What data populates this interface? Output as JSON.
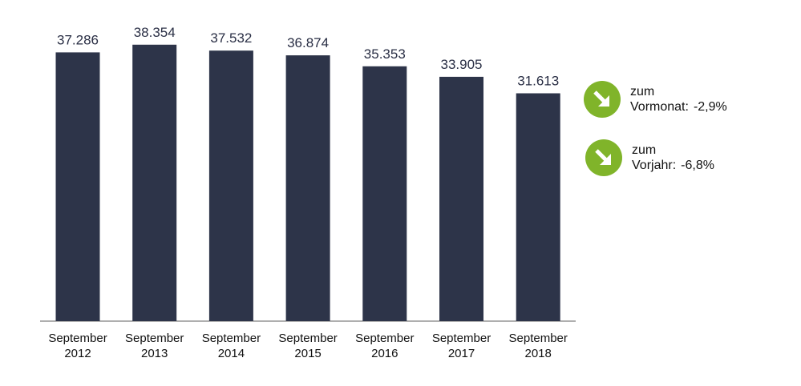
{
  "chart_data": {
    "type": "bar",
    "categories": [
      [
        "September",
        "2012"
      ],
      [
        "September",
        "2013"
      ],
      [
        "September",
        "2014"
      ],
      [
        "September",
        "2015"
      ],
      [
        "September",
        "2016"
      ],
      [
        "September",
        "2017"
      ],
      [
        "September",
        "2018"
      ]
    ],
    "values": [
      37286,
      38354,
      37532,
      36874,
      35353,
      33905,
      31613
    ],
    "value_labels": [
      "37.286",
      "38.354",
      "37.532",
      "36.874",
      "35.353",
      "33.905",
      "31.613"
    ],
    "ylim": [
      0,
      40000
    ],
    "grid": false,
    "bar_color": "#2d3449"
  },
  "changes": [
    {
      "line1": "zum",
      "label": "Vormonat:",
      "value": "-2,9%",
      "icon": "arrow-down-right-icon",
      "color": "#80b42a"
    },
    {
      "line1": "zum",
      "label": "Vorjahr:",
      "value": "-6,8%",
      "icon": "arrow-down-right-icon",
      "color": "#80b42a"
    }
  ]
}
